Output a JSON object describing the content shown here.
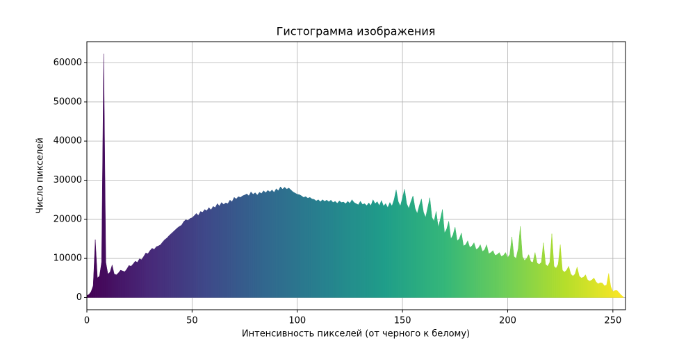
{
  "chart_data": {
    "type": "area",
    "title": "Гистограмма изображения",
    "xlabel": "Интенсивность пикселей (от черного к белому)",
    "ylabel": "Число пикселей",
    "x": [
      0,
      1,
      2,
      3,
      4,
      5,
      6,
      7,
      8,
      9,
      10,
      11,
      12,
      13,
      14,
      15,
      16,
      17,
      18,
      19,
      20,
      21,
      22,
      23,
      24,
      25,
      26,
      27,
      28,
      29,
      30,
      31,
      32,
      33,
      34,
      35,
      36,
      37,
      38,
      39,
      40,
      41,
      42,
      43,
      44,
      45,
      46,
      47,
      48,
      49,
      50,
      51,
      52,
      53,
      54,
      55,
      56,
      57,
      58,
      59,
      60,
      61,
      62,
      63,
      64,
      65,
      66,
      67,
      68,
      69,
      70,
      71,
      72,
      73,
      74,
      75,
      76,
      77,
      78,
      79,
      80,
      81,
      82,
      83,
      84,
      85,
      86,
      87,
      88,
      89,
      90,
      91,
      92,
      93,
      94,
      95,
      96,
      97,
      98,
      99,
      100,
      101,
      102,
      103,
      104,
      105,
      106,
      107,
      108,
      109,
      110,
      111,
      112,
      113,
      114,
      115,
      116,
      117,
      118,
      119,
      120,
      121,
      122,
      123,
      124,
      125,
      126,
      127,
      128,
      129,
      130,
      131,
      132,
      133,
      134,
      135,
      136,
      137,
      138,
      139,
      140,
      141,
      142,
      143,
      144,
      145,
      146,
      147,
      148,
      149,
      150,
      151,
      152,
      153,
      154,
      155,
      156,
      157,
      158,
      159,
      160,
      161,
      162,
      163,
      164,
      165,
      166,
      167,
      168,
      169,
      170,
      171,
      172,
      173,
      174,
      175,
      176,
      177,
      178,
      179,
      180,
      181,
      182,
      183,
      184,
      185,
      186,
      187,
      188,
      189,
      190,
      191,
      192,
      193,
      194,
      195,
      196,
      197,
      198,
      199,
      200,
      201,
      202,
      203,
      204,
      205,
      206,
      207,
      208,
      209,
      210,
      211,
      212,
      213,
      214,
      215,
      216,
      217,
      218,
      219,
      220,
      221,
      222,
      223,
      224,
      225,
      226,
      227,
      228,
      229,
      230,
      231,
      232,
      233,
      234,
      235,
      236,
      237,
      238,
      239,
      240,
      241,
      242,
      243,
      244,
      245,
      246,
      247,
      248,
      249,
      250,
      251,
      252,
      253,
      254,
      255
    ],
    "values": [
      500,
      800,
      1500,
      3000,
      14800,
      5000,
      5500,
      9000,
      62300,
      9000,
      6000,
      6500,
      8300,
      6000,
      5800,
      6300,
      7000,
      6800,
      6600,
      7300,
      8200,
      8000,
      8600,
      9300,
      9000,
      9900,
      9700,
      10500,
      11400,
      11200,
      12000,
      12600,
      12300,
      13000,
      13200,
      13500,
      14200,
      14800,
      15200,
      15800,
      16300,
      16800,
      17300,
      17800,
      18200,
      18500,
      19400,
      19900,
      19700,
      20200,
      20400,
      20900,
      21500,
      21000,
      22000,
      21800,
      22500,
      22200,
      23000,
      22400,
      23300,
      23000,
      24000,
      23400,
      24300,
      23800,
      24200,
      24000,
      24900,
      24500,
      25600,
      25200,
      25800,
      25600,
      26000,
      26200,
      26500,
      26000,
      27000,
      26400,
      26800,
      26200,
      26900,
      26600,
      27300,
      26800,
      27400,
      27000,
      27500,
      26900,
      27800,
      27300,
      28300,
      27700,
      28200,
      27700,
      28000,
      27500,
      27000,
      26700,
      26400,
      26300,
      26000,
      25600,
      25800,
      25400,
      25600,
      25200,
      25100,
      24700,
      25000,
      24500,
      25000,
      24600,
      24900,
      24500,
      24900,
      24300,
      24600,
      24100,
      24700,
      24300,
      24400,
      24000,
      24600,
      24100,
      25000,
      24300,
      24000,
      23700,
      24600,
      23800,
      24000,
      23500,
      24200,
      23500,
      25000,
      24000,
      24500,
      23500,
      24800,
      23400,
      24000,
      23000,
      24300,
      23400,
      25000,
      27500,
      24500,
      23400,
      25500,
      27700,
      24000,
      22800,
      24500,
      26000,
      22800,
      21500,
      23500,
      25200,
      21800,
      20500,
      23000,
      25500,
      20500,
      19500,
      22000,
      18000,
      20000,
      22500,
      16500,
      17500,
      19500,
      15000,
      16000,
      18000,
      14500,
      15000,
      16500,
      13200,
      13500,
      14500,
      12800,
      13200,
      14000,
      12300,
      12600,
      13500,
      11800,
      12200,
      13500,
      11200,
      11500,
      12000,
      10800,
      11000,
      11500,
      10500,
      10800,
      11500,
      10200,
      11000,
      15500,
      10500,
      10000,
      12500,
      18200,
      10500,
      9500,
      10000,
      11000,
      9200,
      9000,
      11500,
      8800,
      8500,
      9000,
      14000,
      8500,
      8000,
      9000,
      16300,
      8000,
      7500,
      8500,
      13500,
      7000,
      6500,
      7000,
      8000,
      6000,
      5500,
      6000,
      7800,
      5500,
      5000,
      5200,
      5800,
      4500,
      4200,
      4500,
      5000,
      4000,
      3500,
      3800,
      3700,
      3000,
      3200,
      6200,
      2800,
      1500,
      1800,
      1800,
      1200,
      600,
      200
    ],
    "colormap": [
      "#440154",
      "#482878",
      "#3e4989",
      "#31688e",
      "#26828e",
      "#1f9e89",
      "#35b779",
      "#6ece58",
      "#b5de2b",
      "#fde725"
    ],
    "xlim": [
      0,
      256
    ],
    "xticks": [
      0,
      50,
      100,
      150,
      200,
      250
    ],
    "ylim": [
      -3115,
      65415
    ],
    "yticks": [
      0,
      10000,
      20000,
      30000,
      40000,
      50000,
      60000
    ],
    "grid": true
  }
}
